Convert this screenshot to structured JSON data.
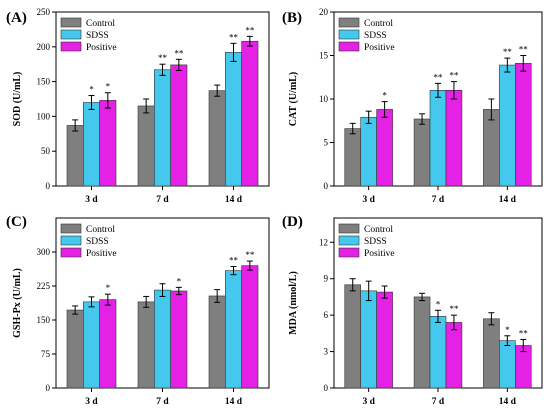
{
  "chart_data": [
    {
      "panel": "(A)",
      "type": "bar",
      "ylabel": "SOD (U/mL)",
      "ylim": [
        0,
        250
      ],
      "yticks": [
        0,
        50,
        100,
        150,
        200,
        250
      ],
      "categories": [
        "3 d",
        "7 d",
        "14 d"
      ],
      "legend": "top-left",
      "colors": [
        "#7f7f7f",
        "#44c8ee",
        "#e421e4"
      ],
      "series": [
        {
          "name": "Control",
          "values": [
            87,
            115,
            137
          ],
          "errors": [
            8,
            10,
            8
          ]
        },
        {
          "name": "SDSS",
          "values": [
            120,
            167,
            192
          ],
          "errors": [
            10,
            8,
            13
          ]
        },
        {
          "name": "Positive",
          "values": [
            123,
            174,
            208
          ],
          "errors": [
            11,
            8,
            7
          ]
        }
      ],
      "significance": [
        [
          "",
          "",
          ""
        ],
        [
          "*",
          "**",
          "**"
        ],
        [
          "*",
          "**",
          "**"
        ]
      ]
    },
    {
      "panel": "(B)",
      "type": "bar",
      "ylabel": "CAT (U/mL)",
      "ylim": [
        0,
        20
      ],
      "yticks": [
        0,
        5,
        10,
        15,
        20
      ],
      "categories": [
        "3 d",
        "7 d",
        "14 d"
      ],
      "legend": "top-left",
      "colors": [
        "#7f7f7f",
        "#44c8ee",
        "#e421e4"
      ],
      "series": [
        {
          "name": "Control",
          "values": [
            6.6,
            7.7,
            8.8
          ],
          "errors": [
            0.6,
            0.6,
            1.2
          ]
        },
        {
          "name": "SDSS",
          "values": [
            7.9,
            11.0,
            13.9
          ],
          "errors": [
            0.7,
            0.8,
            0.8
          ]
        },
        {
          "name": "Positive",
          "values": [
            8.8,
            11.0,
            14.1
          ],
          "errors": [
            0.9,
            1.0,
            0.9
          ]
        }
      ],
      "significance": [
        [
          "",
          "",
          ""
        ],
        [
          "",
          "**",
          "**"
        ],
        [
          "*",
          "**",
          "**"
        ]
      ]
    },
    {
      "panel": "(C)",
      "type": "bar",
      "ylabel": "GSH-Px (U/mL)",
      "ylim": [
        0,
        375
      ],
      "yticks": [
        0,
        75,
        150,
        225,
        300
      ],
      "categories": [
        "3 d",
        "7 d",
        "14 d"
      ],
      "legend": "top-left",
      "colors": [
        "#7f7f7f",
        "#44c8ee",
        "#e421e4"
      ],
      "series": [
        {
          "name": "Control",
          "values": [
            172,
            190,
            203
          ],
          "errors": [
            9,
            12,
            14
          ]
        },
        {
          "name": "SDSS",
          "values": [
            190,
            216,
            259
          ],
          "errors": [
            11,
            14,
            9
          ]
        },
        {
          "name": "Positive",
          "values": [
            195,
            214,
            270
          ],
          "errors": [
            12,
            8,
            10
          ]
        }
      ],
      "significance": [
        [
          "",
          "",
          ""
        ],
        [
          "",
          "",
          "**"
        ],
        [
          "*",
          "*",
          "**"
        ]
      ]
    },
    {
      "panel": "(D)",
      "type": "bar",
      "ylabel": "MDA (nmol/L)",
      "ylim": [
        0,
        14
      ],
      "yticks": [
        0,
        3,
        6,
        9,
        12
      ],
      "categories": [
        "3 d",
        "7 d",
        "14 d"
      ],
      "legend": "top-left",
      "colors": [
        "#7f7f7f",
        "#44c8ee",
        "#e421e4"
      ],
      "series": [
        {
          "name": "Control",
          "values": [
            8.5,
            7.5,
            5.7
          ],
          "errors": [
            0.5,
            0.3,
            0.5
          ]
        },
        {
          "name": "SDSS",
          "values": [
            8.0,
            5.9,
            3.9
          ],
          "errors": [
            0.8,
            0.5,
            0.4
          ]
        },
        {
          "name": "Positive",
          "values": [
            7.9,
            5.4,
            3.5
          ],
          "errors": [
            0.5,
            0.6,
            0.5
          ]
        }
      ],
      "significance": [
        [
          "",
          "",
          ""
        ],
        [
          "",
          "*",
          "*"
        ],
        [
          "",
          "**",
          "**"
        ]
      ]
    }
  ]
}
